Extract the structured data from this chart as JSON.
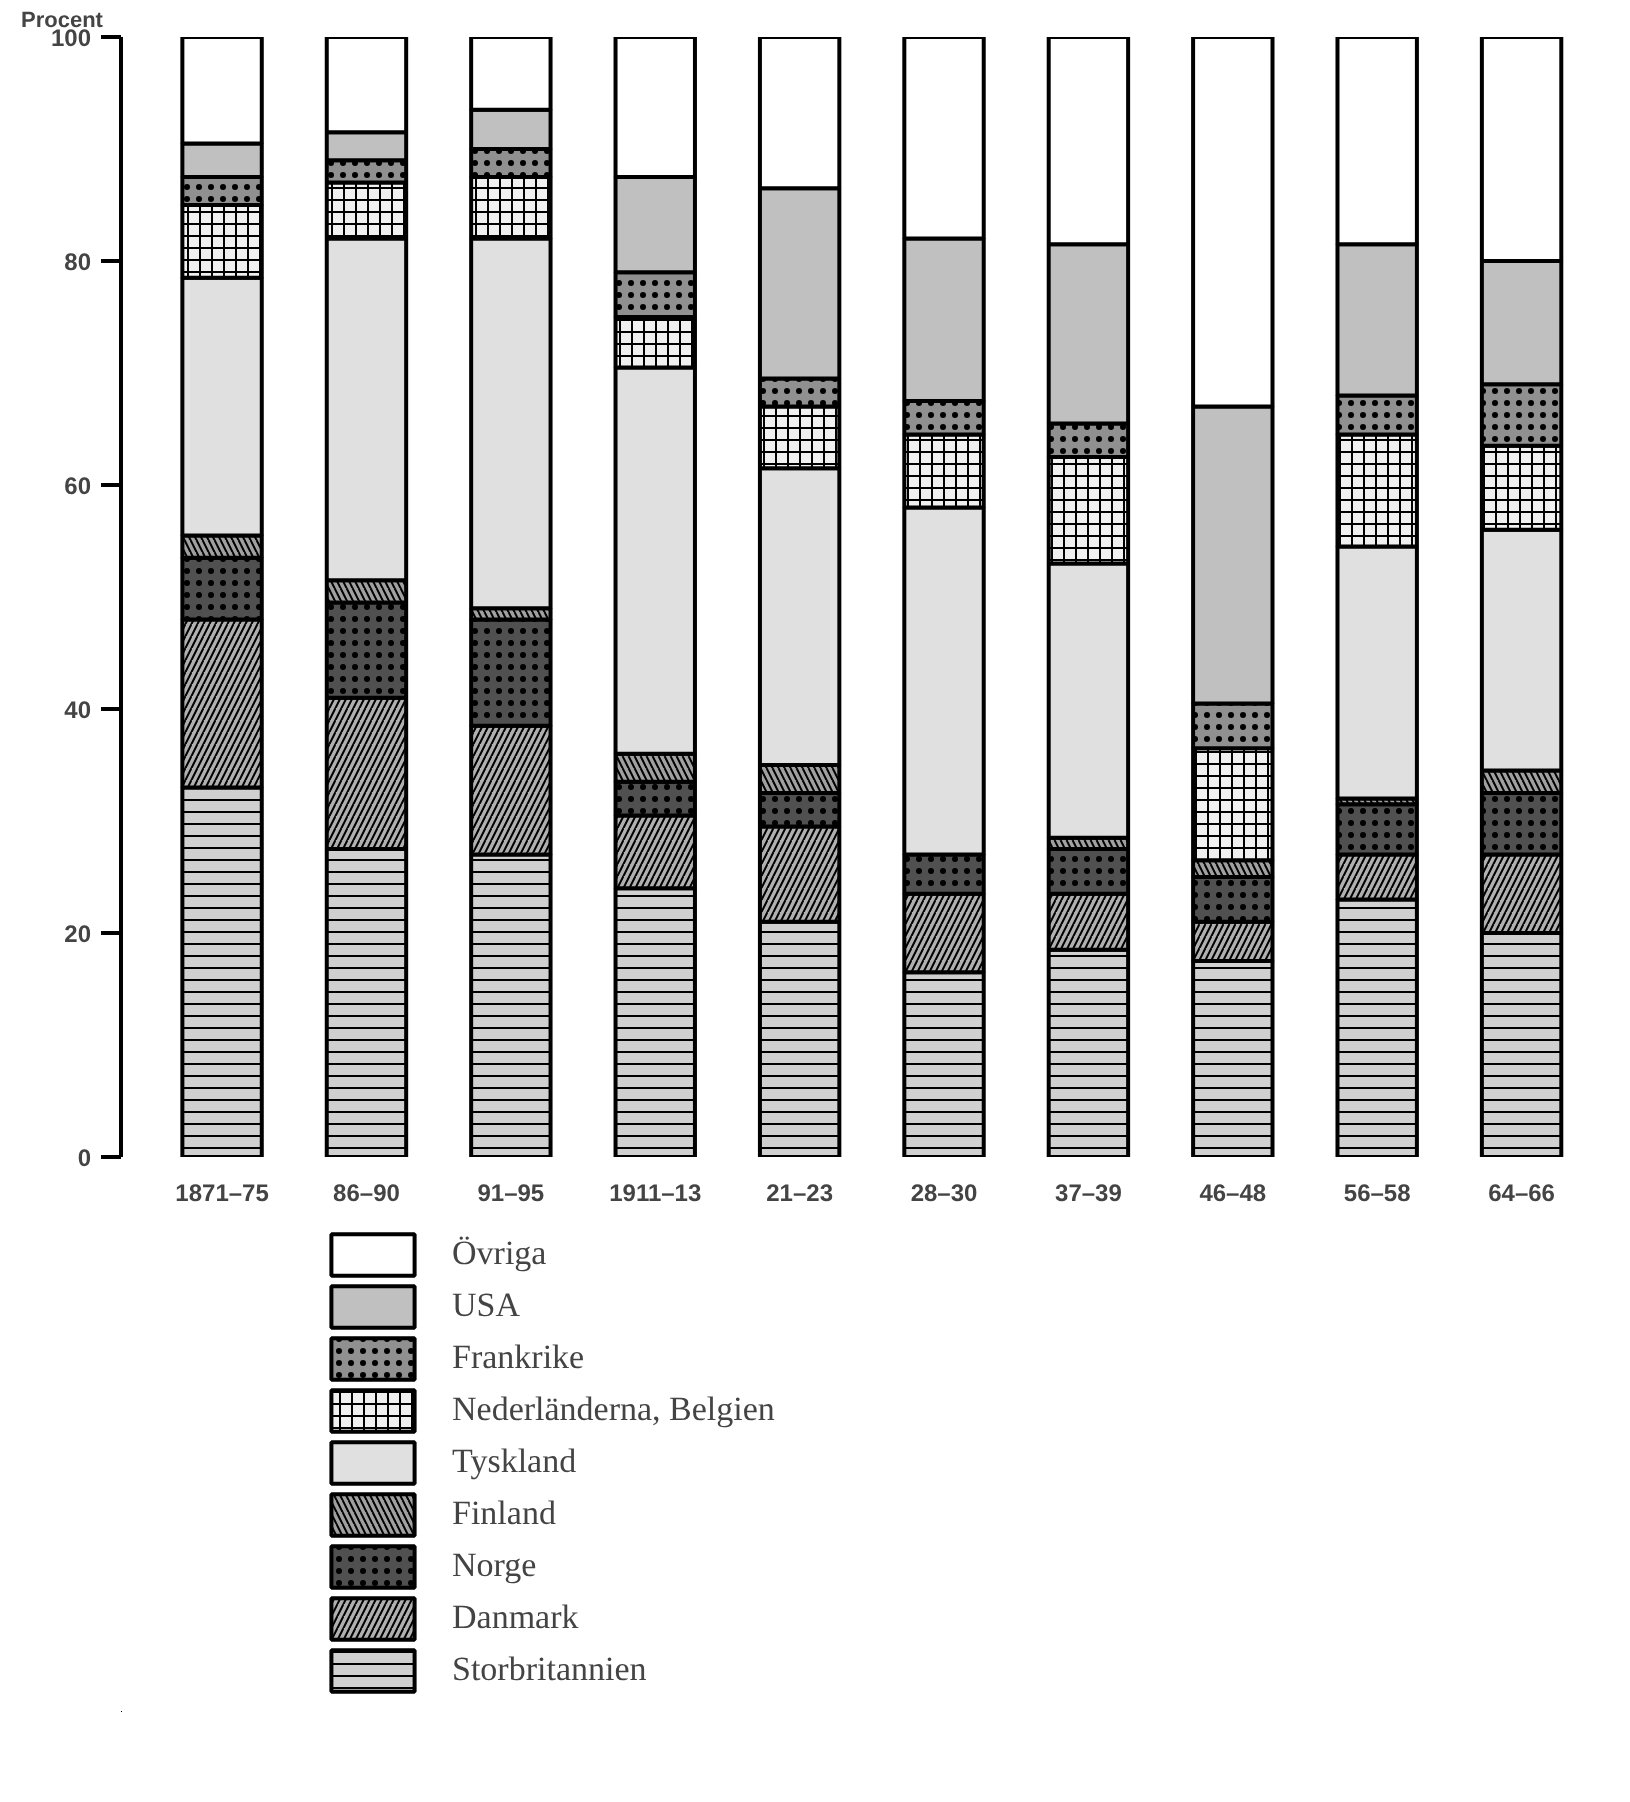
{
  "chart_data": {
    "type": "bar",
    "stacked": true,
    "ylabel": "Procent",
    "categories": [
      "1871–75",
      "86–90",
      "91–95",
      "1911–13",
      "21–23",
      "28–30",
      "37–39",
      "46–48",
      "56–58",
      "64–66"
    ],
    "ylim": [
      0,
      100
    ],
    "yticks": [
      0,
      20,
      40,
      60,
      80,
      100
    ],
    "legend": "bottom",
    "grid": false,
    "series": [
      {
        "name": "Storbritannien",
        "color": "#d0d0d0",
        "values": [
          33,
          27.5,
          27,
          24,
          21,
          16.5,
          18.5,
          17.5,
          23,
          20
        ]
      },
      {
        "name": "Danmark",
        "color": "#b0b0b0",
        "values": [
          15,
          13.5,
          11.5,
          6.5,
          8.5,
          7,
          5,
          3.5,
          4,
          7
        ]
      },
      {
        "name": "Norge",
        "color": "#505050",
        "values": [
          5.5,
          8.5,
          9.5,
          3,
          3,
          3.5,
          4,
          4,
          4.5,
          5.5
        ]
      },
      {
        "name": "Finland",
        "color": "#a0a0a0",
        "values": [
          2,
          2,
          1,
          2.5,
          2.5,
          null,
          1,
          1.5,
          0.5,
          2
        ]
      },
      {
        "name": "Tyskland",
        "color": "#e0e0e0",
        "values": [
          23,
          30.5,
          33,
          34.5,
          26.5,
          31,
          24.5,
          null,
          22.5,
          21.5
        ]
      },
      {
        "name": "Nederländerna, Belgien",
        "color": "#f0f0f0",
        "values": [
          6.5,
          5,
          5.5,
          4.5,
          5.5,
          6.5,
          9.5,
          10,
          10,
          7.5
        ]
      },
      {
        "name": "Frankrike",
        "color": "#909090",
        "values": [
          2.5,
          2,
          2.5,
          4,
          2.5,
          3,
          3,
          4,
          3.5,
          5.5
        ]
      },
      {
        "name": "USA",
        "color": "#c0c0c0",
        "values": [
          3,
          2.5,
          3.5,
          8.5,
          17,
          14.5,
          16,
          26.5,
          13.5,
          11
        ]
      },
      {
        "name": "Övriga",
        "color": "#ffffff",
        "values": [
          9.5,
          8.5,
          6.5,
          12.5,
          13.5,
          18,
          18.5,
          33,
          18.5,
          20
        ]
      }
    ]
  }
}
